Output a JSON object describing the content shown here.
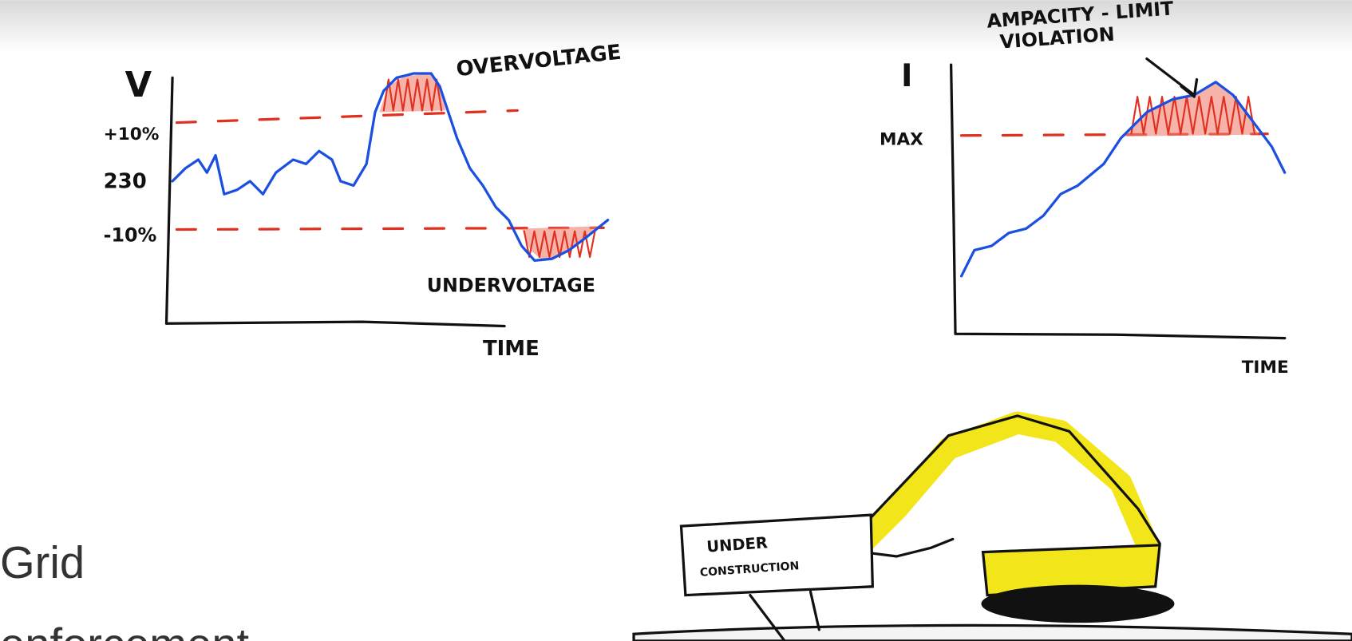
{
  "voltage_sketch": {
    "y_axis": "V",
    "levels": [
      "+10%",
      "230",
      "-10%"
    ],
    "x_axis": "TIME",
    "annotations": [
      "OVERVOLTAGE",
      "UNDERVOLTAGE"
    ]
  },
  "current_sketch": {
    "y_axis": "I",
    "level": "MAX",
    "x_axis": "TIME",
    "annotation": [
      "AMPACITY - LIMIT",
      "VIOLATION"
    ]
  },
  "sign": [
    "UNDER",
    "CONSTRUCTION"
  ],
  "slide_text": [
    "Grid",
    "enforcement"
  ]
}
